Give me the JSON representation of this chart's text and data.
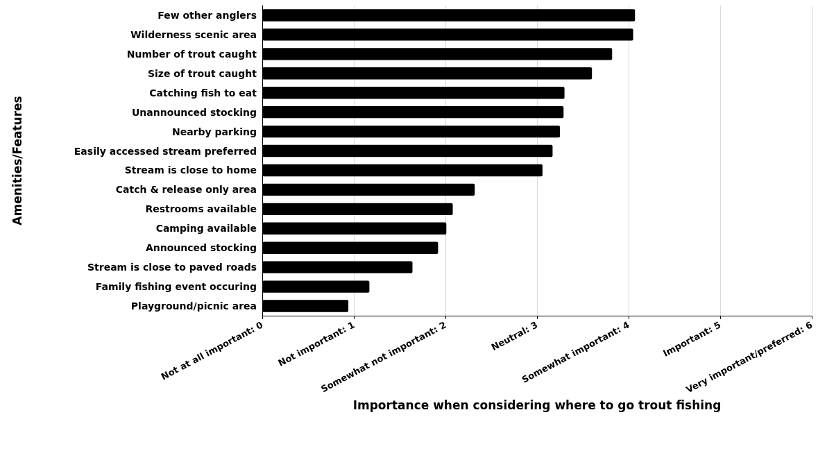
{
  "chart_data": {
    "type": "bar",
    "orientation": "horizontal",
    "xlabel": "Importance when considering where to go trout fishing",
    "ylabel": "Amenities/Features",
    "categories": [
      "Few other anglers",
      "Wilderness scenic area",
      "Number of trout caught",
      "Size of trout caught",
      "Catching fish to eat",
      "Unannounced stocking",
      "Nearby parking",
      "Easily accessed stream preferred",
      "Stream is close to home",
      "Catch & release only area",
      "Restrooms available",
      "Camping available",
      "Announced stocking",
      "Stream is close to paved roads",
      "Family fishing event occuring",
      "Playground/picnic area"
    ],
    "values": [
      4.07,
      4.05,
      3.82,
      3.6,
      3.3,
      3.29,
      3.25,
      3.17,
      3.06,
      2.32,
      2.08,
      2.01,
      1.92,
      1.64,
      1.17,
      0.94
    ],
    "color": "#000000",
    "xlim": [
      0,
      6
    ],
    "xticks": [
      {
        "value": 0,
        "label": "Not at all important: 0"
      },
      {
        "value": 1,
        "label": "Not important: 1"
      },
      {
        "value": 2,
        "label": "Somewhat not important: 2"
      },
      {
        "value": 3,
        "label": "Neutral: 3"
      },
      {
        "value": 4,
        "label": "Somewhat important: 4"
      },
      {
        "value": 5,
        "label": "Important: 5"
      },
      {
        "value": 6,
        "label": "Very important/preferred: 6"
      }
    ],
    "grid": "x"
  }
}
